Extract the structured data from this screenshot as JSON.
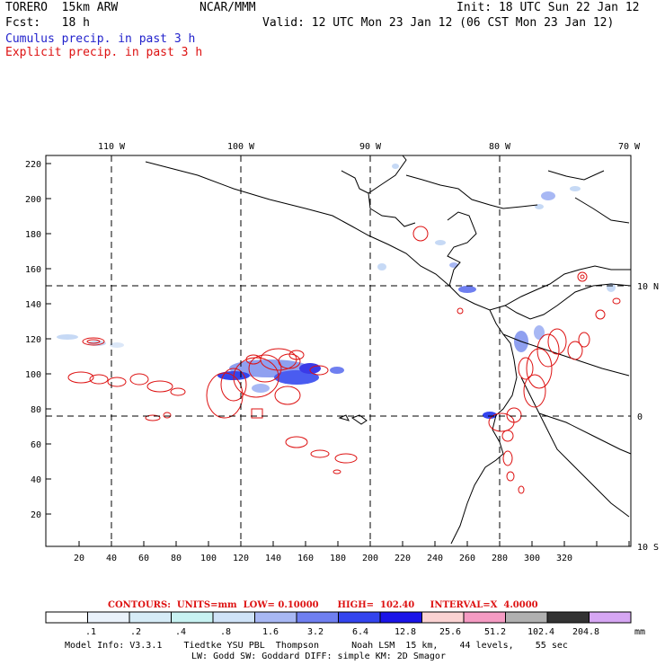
{
  "header": {
    "model": "TORERO  15km ARW",
    "org": "NCAR/MMM",
    "init": "Init: 18 UTC Sun 22 Jan 12",
    "fcst": "Fcst:   18 h",
    "valid": "Valid: 12 UTC Mon 23 Jan 12 (06 CST Mon 23 Jan 12)",
    "cumulus": "Cumulus precip. in past 3 h",
    "explicit": "Explicit precip. in past 3 h"
  },
  "map": {
    "lon_labels": [
      "110 W",
      "100 W",
      "90 W",
      "80 W",
      "70 W"
    ],
    "lat_labels": [
      "10 N",
      "0",
      "10 S"
    ],
    "x_ticks": [
      "20",
      "40",
      "60",
      "80",
      "100",
      "120",
      "140",
      "160",
      "180",
      "200",
      "220",
      "240",
      "260",
      "280",
      "300",
      "320"
    ],
    "y_ticks": [
      "220",
      "200",
      "180",
      "160",
      "140",
      "120",
      "100",
      "80",
      "60",
      "40",
      "20"
    ]
  },
  "contours": {
    "text": "CONTOURS:  UNITS=mm  LOW= 0.10000      HIGH=  102.40     INTERVAL=X  4.0000"
  },
  "colorbar": {
    "labels": [
      ".1",
      ".2",
      ".4",
      ".8",
      "1.6",
      "3.2",
      "6.4",
      "12.8",
      "25.6",
      "51.2",
      "102.4",
      "204.8"
    ],
    "units": "mm",
    "colors": [
      "#ffffff",
      "#eaf2fb",
      "#d6ecf7",
      "#c8f2f2",
      "#cfe3f8",
      "#a8b8f4",
      "#6f7ff0",
      "#3344ee",
      "#1a14e8",
      "#fbd3d3",
      "#f59bc3",
      "#b0b0b0",
      "#333333",
      "#d6a6f3"
    ]
  },
  "footer": {
    "line1": "Model Info: V3.3.1    Tiedtke YSU PBL  Thompson      Noah LSM  15 km,    44 levels,    55 sec",
    "line2": "LW: Godd SW: Goddard DIFF: simple KM: 2D Smagor"
  }
}
